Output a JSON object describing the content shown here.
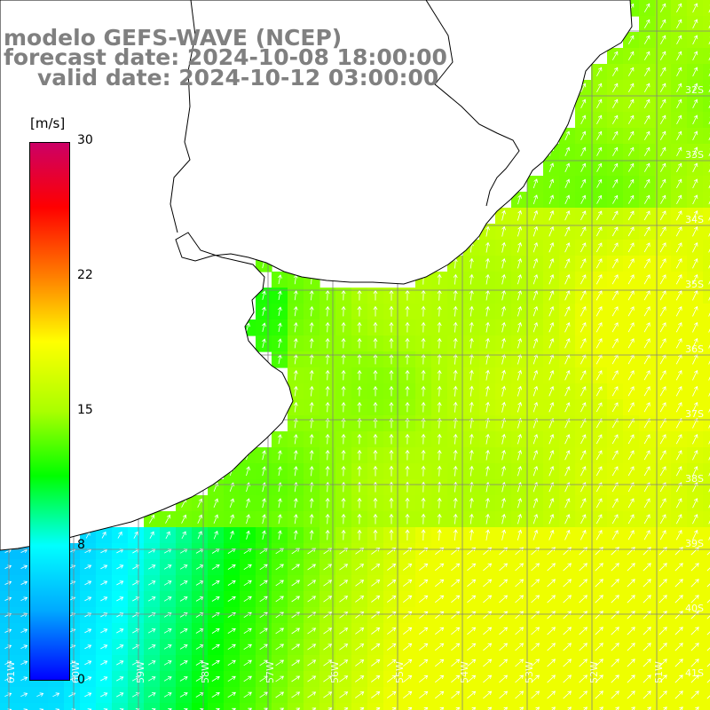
{
  "title": {
    "model": "modelo GEFS-WAVE (NCEP)",
    "forecast": "forecast date: 2024-10-08 18:00:00",
    "valid": "valid date: 2024-10-12 03:00:00"
  },
  "colorbar": {
    "unit": "[m/s]",
    "ticks": [
      "30",
      "22",
      "15",
      "8",
      "0"
    ],
    "colors": [
      "#0000ff",
      "#00aaff",
      "#00ffff",
      "#00ff00",
      "#aaff00",
      "#ffff00",
      "#ff8000",
      "#ff0000",
      "#cc0066"
    ]
  },
  "map": {
    "lat_labels": [
      "32S",
      "33S",
      "34S",
      "35S",
      "36S",
      "37S",
      "38S",
      "39S",
      "40S",
      "41S"
    ],
    "lon_labels": [
      "61W",
      "60W",
      "59W",
      "58W",
      "57W",
      "56W",
      "55W",
      "54W",
      "53W",
      "52W",
      "51W"
    ],
    "colors": {
      "land": "#ffffff",
      "coast": "#000000",
      "grid": "#7f7f7f",
      "arrow": "#ffffff"
    }
  }
}
